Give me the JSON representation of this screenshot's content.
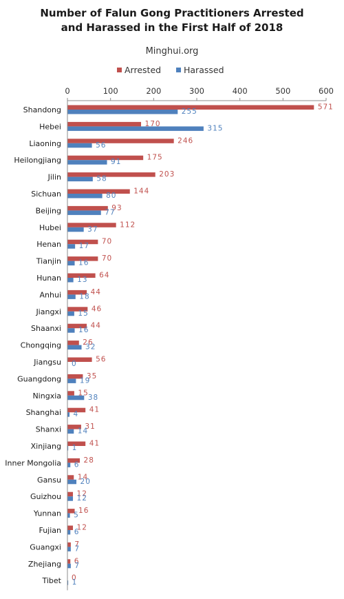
{
  "chart_data": {
    "type": "bar",
    "orientation": "horizontal",
    "title_lines": [
      "Number of Falun Gong Practitioners Arrested",
      "and Harassed in the First Half of 2018"
    ],
    "subtitle": "Minghui.org",
    "legend_position": "top",
    "xlim": [
      0,
      600
    ],
    "x_ticks": [
      "0",
      "100",
      "200",
      "300",
      "400",
      "500",
      "600"
    ],
    "x_axis_position": "top",
    "grid": false,
    "categories": [
      "Shandong",
      "Hebei",
      "Liaoning",
      "Heilongjiang",
      "Jilin",
      "Sichuan",
      "Beijing",
      "Hubei",
      "Henan",
      "Tianjin",
      "Hunan",
      "Anhui",
      "Jiangxi",
      "Shaanxi",
      "Chongqing",
      "Jiangsu",
      "Guangdong",
      "Ningxia",
      "Shanghai",
      "Shanxi",
      "Xinjiang",
      "Inner Mongolia",
      "Gansu",
      "Guizhou",
      "Yunnan",
      "Fujian",
      "Guangxi",
      "Zhejiang",
      "Tibet"
    ],
    "series": [
      {
        "name": "Arrested",
        "color": "#c0504d",
        "values": [
          571,
          170,
          246,
          175,
          203,
          144,
          93,
          112,
          70,
          70,
          64,
          44,
          46,
          44,
          26,
          56,
          35,
          15,
          41,
          31,
          41,
          28,
          14,
          12,
          16,
          12,
          7,
          6,
          0
        ]
      },
      {
        "name": "Harassed",
        "color": "#4f81bd",
        "values": [
          255,
          315,
          56,
          91,
          58,
          80,
          77,
          37,
          17,
          16,
          13,
          18,
          15,
          16,
          32,
          0,
          19,
          38,
          4,
          14,
          1,
          6,
          20,
          12,
          5,
          6,
          7,
          7,
          1
        ]
      }
    ]
  }
}
